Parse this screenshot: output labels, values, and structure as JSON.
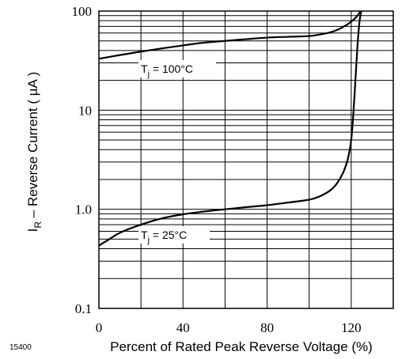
{
  "figure_number": "15400",
  "chart_data": {
    "type": "line",
    "xlabel": "Percent of Rated Peak Reverse Voltage (%)",
    "ylabel_main": "I",
    "ylabel_sub": "R",
    "ylabel_rest": " – Reverse Current ( µA )",
    "x_scale": "linear",
    "y_scale": "log",
    "xlim": [
      0,
      140
    ],
    "ylim": [
      0.1,
      100
    ],
    "x_ticks": [
      0,
      40,
      80,
      120
    ],
    "x_tick_labels": [
      "0",
      "40",
      "80",
      "120"
    ],
    "y_ticks": [
      0.1,
      1,
      10,
      100
    ],
    "y_tick_labels": [
      "0.1",
      "1.0",
      "10",
      "100"
    ],
    "grid": true,
    "series": [
      {
        "label_main": "T",
        "label_sub": "j",
        "label_rest": " = 100°C",
        "x": [
          0,
          10,
          20,
          30,
          40,
          50,
          60,
          70,
          80,
          90,
          100,
          105,
          110,
          115,
          120,
          123,
          125
        ],
        "y": [
          33,
          36,
          39,
          42,
          45,
          48,
          50,
          52,
          54,
          55,
          56,
          58,
          61,
          67,
          78,
          90,
          105
        ]
      },
      {
        "label_main": "T",
        "label_sub": "j",
        "label_rest": " = 25°C",
        "x": [
          0,
          5,
          10,
          20,
          30,
          40,
          50,
          60,
          70,
          80,
          90,
          100,
          105,
          110,
          113,
          116,
          118,
          119,
          120,
          121,
          122,
          123,
          124,
          125
        ],
        "y": [
          0.43,
          0.5,
          0.58,
          0.7,
          0.81,
          0.89,
          0.95,
          1.0,
          1.05,
          1.1,
          1.17,
          1.25,
          1.35,
          1.55,
          1.8,
          2.3,
          3.0,
          3.7,
          5.0,
          9.0,
          20,
          45,
          80,
          105
        ]
      }
    ]
  }
}
